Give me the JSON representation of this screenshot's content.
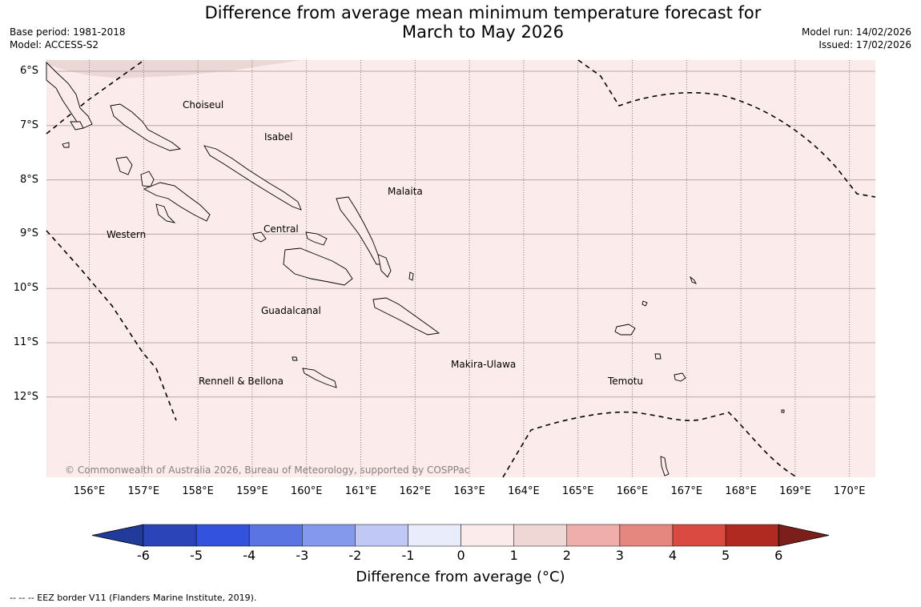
{
  "title": {
    "line1": "Difference from average mean minimum temperature forecast for",
    "line2": "March to May 2026"
  },
  "meta": {
    "base_period": "Base period: 1981-2018",
    "model": "Model: ACCESS-S2",
    "model_run": "Model run: 14/02/2026",
    "issued": "Issued: 17/02/2026"
  },
  "map": {
    "latitudes": [
      "6°S",
      "7°S",
      "8°S",
      "9°S",
      "10°S",
      "11°S",
      "12°S"
    ],
    "longitudes": [
      "156°E",
      "157°E",
      "158°E",
      "159°E",
      "160°E",
      "161°E",
      "162°E",
      "163°E",
      "164°E",
      "165°E",
      "166°E",
      "167°E",
      "168°E",
      "169°E",
      "170°E"
    ],
    "regions": {
      "choiseul": "Choiseul",
      "isabel": "Isabel",
      "malaita": "Malaita",
      "western": "Western",
      "central": "Central",
      "guadalcanal": "Guadalcanal",
      "makira": "Makira-Ulawa",
      "rennell": "Rennell & Bellona",
      "temotu": "Temotu"
    },
    "copyright": "© Commonwealth of Australia 2026, Bureau of Meteorology, supported by COSPPac",
    "background_color": "#fbebea",
    "warm_patch_color": "#ead7d6"
  },
  "colorbar": {
    "ticks": [
      "-6",
      "-5",
      "-4",
      "-3",
      "-2",
      "-1",
      "0",
      "1",
      "2",
      "3",
      "4",
      "5",
      "6"
    ],
    "colors": [
      "#223a9a",
      "#2b44b8",
      "#3353df",
      "#5b74e3",
      "#8498ec",
      "#c0c9f5",
      "#e9ecfb",
      "#fbebea",
      "#eed7d5",
      "#efadab",
      "#e6877f",
      "#db4a40",
      "#b12a22",
      "#7c1e1a"
    ],
    "label": "Difference from average (°C)"
  },
  "footnote": "--  --  -- EEZ border V11 (Flanders Marine Institute, 2019)."
}
